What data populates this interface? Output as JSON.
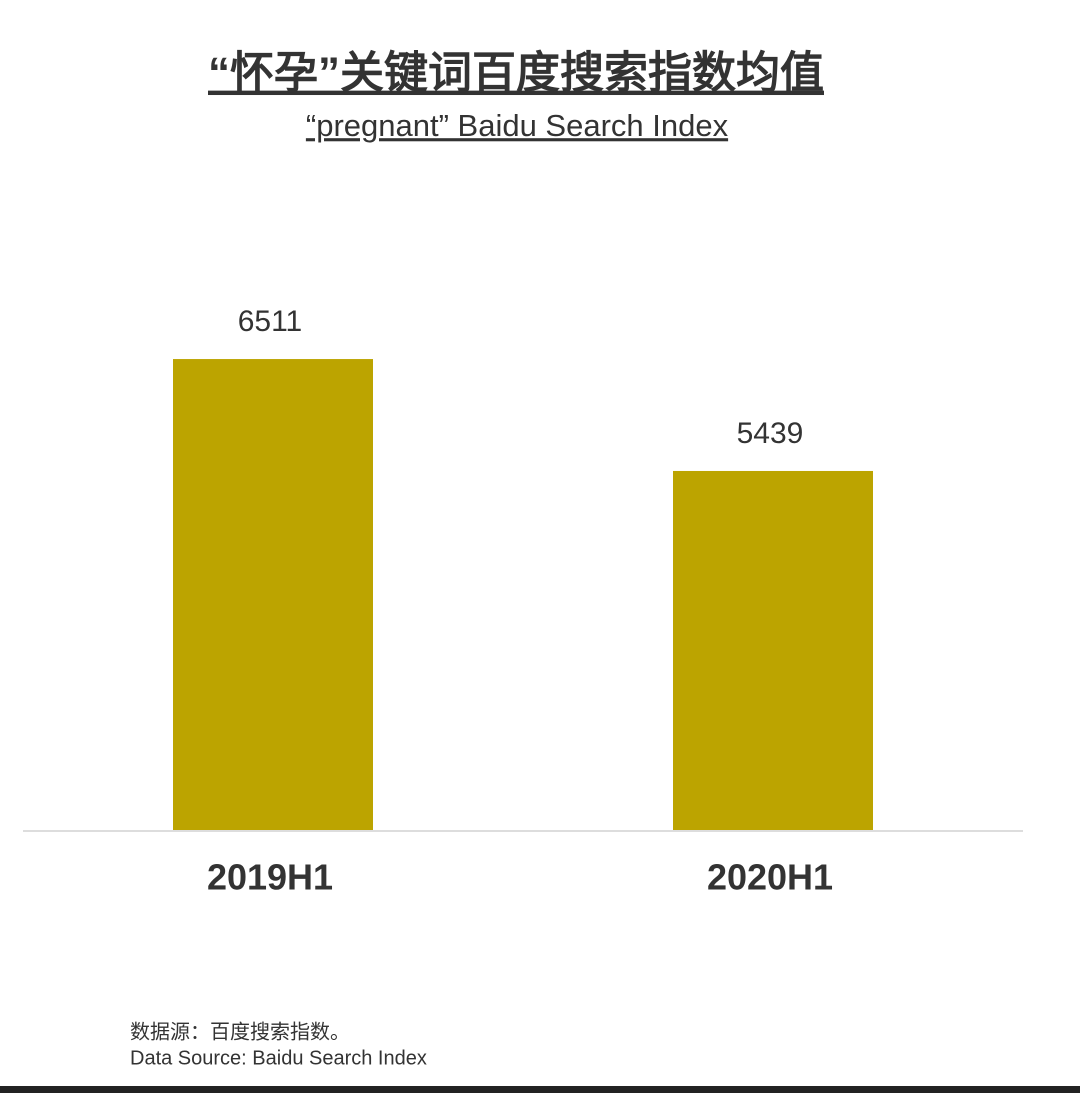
{
  "chart_data": {
    "type": "bar",
    "title": "“怀孕”关键词百度搜索指数均值",
    "subtitle": "“pregnant” Baidu Search Index",
    "categories": [
      "2019H1",
      "2020H1"
    ],
    "values": [
      6511,
      5439
    ],
    "color": "#bca400",
    "ylim": [
      2000,
      7000
    ],
    "source": [
      "数据源：百度搜索指数。",
      "Data Source: Baidu Search Index"
    ]
  }
}
